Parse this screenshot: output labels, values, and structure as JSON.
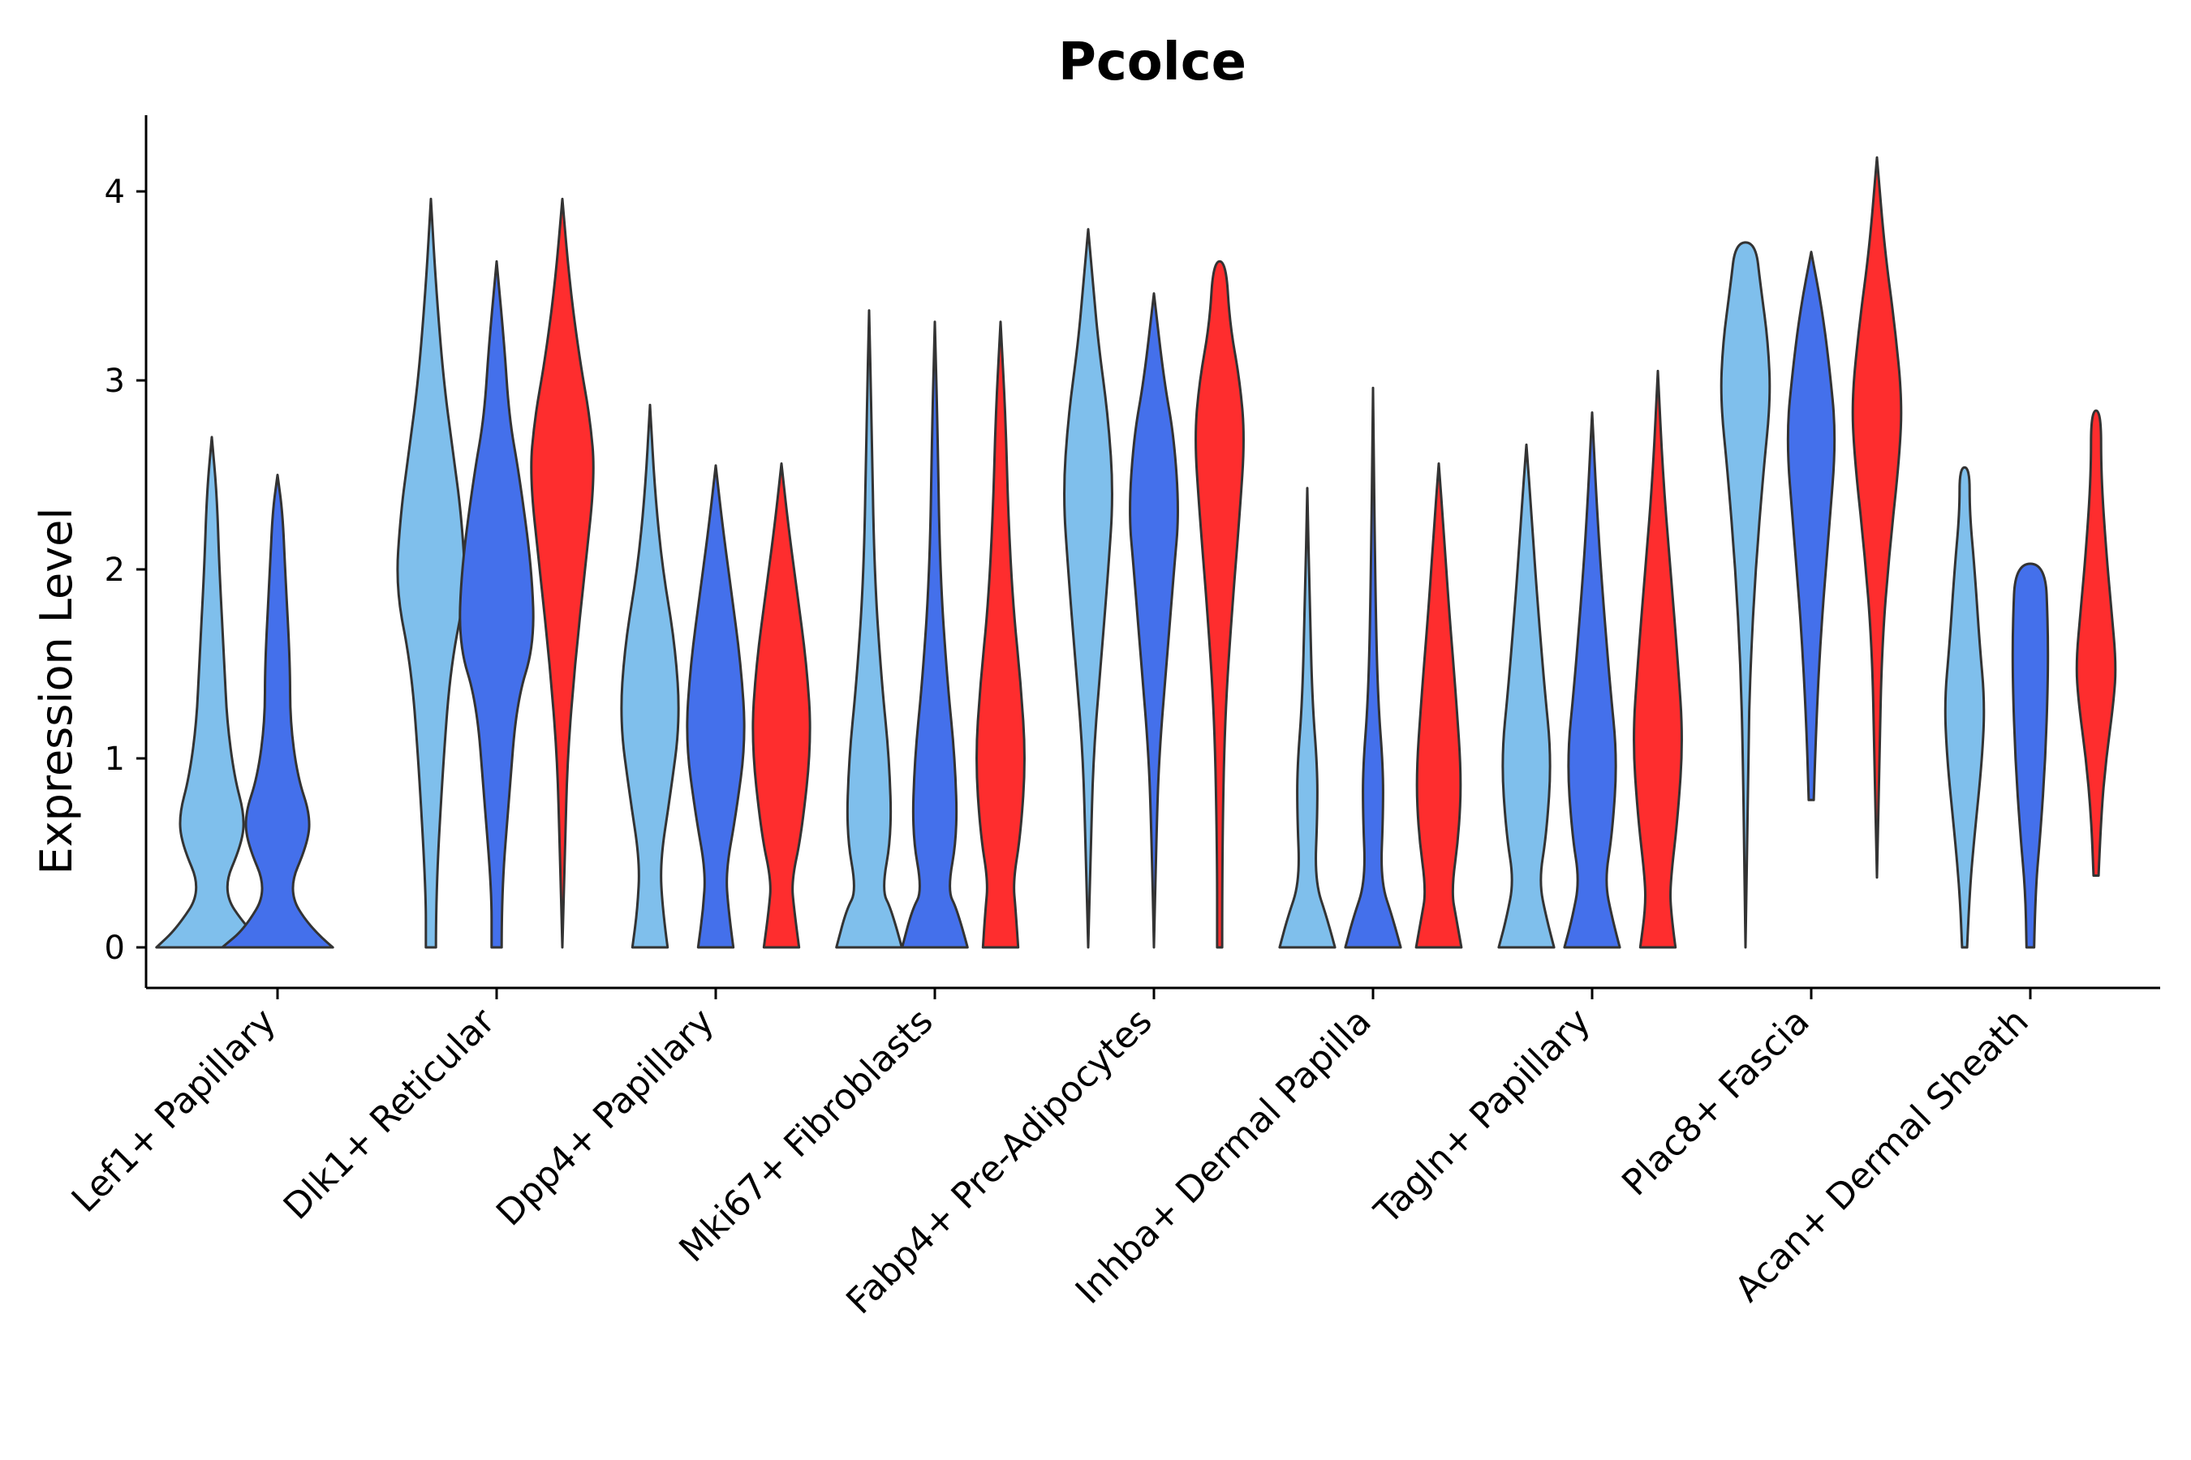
{
  "chart_data": {
    "type": "violin",
    "title": "Pcolce",
    "xlabel": "",
    "ylabel": "Expression Level",
    "ylim": [
      -0.2,
      4.4
    ],
    "yticks": [
      0,
      1,
      2,
      3,
      4
    ],
    "grid": false,
    "legend": "none",
    "series_colors": [
      "#7fbfec",
      "#4470eb",
      "#fe2d2e"
    ],
    "categories": [
      "Lef1+ Papillary",
      "Dlk1+ Reticular",
      "Dpp4+ Papillary",
      "Mki67+ Fibroblasts",
      "Fabp4+ Pre-Adipocytes",
      "Inhba+ Dermal Papilla",
      "Tagln+ Papillary",
      "Plac8+ Fascia",
      "Acan+ Dermal Sheath"
    ],
    "violins": [
      {
        "category": "Lef1+ Papillary",
        "series": 0,
        "min": 0,
        "max": 2.7,
        "profile": [
          [
            0,
            0.22
          ],
          [
            0.1,
            0.14
          ],
          [
            0.3,
            0.04
          ],
          [
            0.55,
            0.12
          ],
          [
            0.7,
            0.13
          ],
          [
            0.9,
            0.09
          ],
          [
            1.2,
            0.06
          ],
          [
            1.5,
            0.05
          ],
          [
            2.0,
            0.03
          ],
          [
            2.4,
            0.02
          ],
          [
            2.7,
            0.0
          ]
        ]
      },
      {
        "category": "Lef1+ Papillary",
        "series": 1,
        "min": 0,
        "max": 2.5,
        "profile": [
          [
            0,
            0.22
          ],
          [
            0.1,
            0.13
          ],
          [
            0.3,
            0.04
          ],
          [
            0.55,
            0.12
          ],
          [
            0.7,
            0.13
          ],
          [
            0.9,
            0.08
          ],
          [
            1.2,
            0.05
          ],
          [
            1.5,
            0.05
          ],
          [
            2.0,
            0.03
          ],
          [
            2.3,
            0.02
          ],
          [
            2.5,
            0.0
          ]
        ]
      },
      {
        "category": "Dlk1+ Reticular",
        "series": 0,
        "min": 0,
        "max": 3.96,
        "profile": [
          [
            0,
            0.02
          ],
          [
            0.3,
            0.02
          ],
          [
            1.0,
            0.05
          ],
          [
            1.5,
            0.08
          ],
          [
            1.9,
            0.14
          ],
          [
            2.3,
            0.12
          ],
          [
            2.6,
            0.09
          ],
          [
            3.0,
            0.05
          ],
          [
            3.5,
            0.02
          ],
          [
            3.96,
            0.0
          ]
        ]
      },
      {
        "category": "Dlk1+ Reticular",
        "series": 1,
        "min": 0,
        "max": 3.63,
        "profile": [
          [
            0,
            0.02
          ],
          [
            0.3,
            0.02
          ],
          [
            0.8,
            0.05
          ],
          [
            1.3,
            0.08
          ],
          [
            1.6,
            0.15
          ],
          [
            2.0,
            0.14
          ],
          [
            2.5,
            0.09
          ],
          [
            2.8,
            0.05
          ],
          [
            3.2,
            0.03
          ],
          [
            3.63,
            0.0
          ]
        ]
      },
      {
        "category": "Dlk1+ Reticular",
        "series": 2,
        "min": 0,
        "max": 3.96,
        "profile": [
          [
            0,
            0.0
          ],
          [
            0.5,
            0.01
          ],
          [
            1.0,
            0.02
          ],
          [
            1.5,
            0.05
          ],
          [
            2.0,
            0.09
          ],
          [
            2.5,
            0.13
          ],
          [
            2.8,
            0.11
          ],
          [
            3.1,
            0.07
          ],
          [
            3.5,
            0.03
          ],
          [
            3.96,
            0.0
          ]
        ]
      },
      {
        "category": "Dpp4+ Papillary",
        "series": 0,
        "min": 0,
        "max": 2.87,
        "profile": [
          [
            0,
            0.07
          ],
          [
            0.2,
            0.05
          ],
          [
            0.45,
            0.04
          ],
          [
            0.8,
            0.08
          ],
          [
            1.2,
            0.12
          ],
          [
            1.6,
            0.1
          ],
          [
            2.0,
            0.05
          ],
          [
            2.4,
            0.02
          ],
          [
            2.87,
            0.0
          ]
        ]
      },
      {
        "category": "Dpp4+ Papillary",
        "series": 1,
        "min": 0,
        "max": 2.55,
        "profile": [
          [
            0,
            0.07
          ],
          [
            0.2,
            0.05
          ],
          [
            0.4,
            0.04
          ],
          [
            0.7,
            0.08
          ],
          [
            1.1,
            0.12
          ],
          [
            1.5,
            0.1
          ],
          [
            1.9,
            0.06
          ],
          [
            2.2,
            0.03
          ],
          [
            2.55,
            0.0
          ]
        ]
      },
      {
        "category": "Dpp4+ Papillary",
        "series": 2,
        "min": 0,
        "max": 2.56,
        "profile": [
          [
            0,
            0.07
          ],
          [
            0.2,
            0.05
          ],
          [
            0.35,
            0.04
          ],
          [
            0.6,
            0.08
          ],
          [
            1.1,
            0.12
          ],
          [
            1.5,
            0.1
          ],
          [
            1.9,
            0.06
          ],
          [
            2.2,
            0.03
          ],
          [
            2.56,
            0.0
          ]
        ]
      },
      {
        "category": "Mki67+ Fibroblasts",
        "series": 0,
        "min": 0,
        "max": 3.37,
        "profile": [
          [
            0,
            0.13
          ],
          [
            0.2,
            0.09
          ],
          [
            0.3,
            0.05
          ],
          [
            0.6,
            0.09
          ],
          [
            1.0,
            0.08
          ],
          [
            1.4,
            0.05
          ],
          [
            2.0,
            0.02
          ],
          [
            2.8,
            0.01
          ],
          [
            3.37,
            0.0
          ]
        ]
      },
      {
        "category": "Mki67+ Fibroblasts",
        "series": 1,
        "min": 0,
        "max": 3.31,
        "profile": [
          [
            0,
            0.13
          ],
          [
            0.2,
            0.09
          ],
          [
            0.3,
            0.05
          ],
          [
            0.6,
            0.09
          ],
          [
            1.0,
            0.08
          ],
          [
            1.4,
            0.05
          ],
          [
            2.0,
            0.02
          ],
          [
            2.8,
            0.01
          ],
          [
            3.31,
            0.0
          ]
        ]
      },
      {
        "category": "Mki67+ Fibroblasts",
        "series": 2,
        "min": 0,
        "max": 3.31,
        "profile": [
          [
            0,
            0.07
          ],
          [
            0.2,
            0.06
          ],
          [
            0.35,
            0.05
          ],
          [
            0.6,
            0.08
          ],
          [
            1.0,
            0.1
          ],
          [
            1.4,
            0.08
          ],
          [
            1.8,
            0.05
          ],
          [
            2.3,
            0.03
          ],
          [
            2.8,
            0.02
          ],
          [
            3.31,
            0.0
          ]
        ]
      },
      {
        "category": "Fabp4+ Pre-Adipocytes",
        "series": 0,
        "min": 0,
        "max": 3.8,
        "profile": [
          [
            0,
            0.0
          ],
          [
            0.5,
            0.01
          ],
          [
            1.0,
            0.02
          ],
          [
            1.5,
            0.05
          ],
          [
            2.0,
            0.08
          ],
          [
            2.4,
            0.1
          ],
          [
            2.8,
            0.08
          ],
          [
            3.2,
            0.04
          ],
          [
            3.5,
            0.02
          ],
          [
            3.8,
            0.0
          ]
        ]
      },
      {
        "category": "Fabp4+ Pre-Adipocytes",
        "series": 1,
        "min": 0,
        "max": 3.46,
        "profile": [
          [
            0,
            0.0
          ],
          [
            0.6,
            0.01
          ],
          [
            1.0,
            0.02
          ],
          [
            1.5,
            0.05
          ],
          [
            2.0,
            0.08
          ],
          [
            2.3,
            0.1
          ],
          [
            2.7,
            0.08
          ],
          [
            3.0,
            0.04
          ],
          [
            3.46,
            0.0
          ]
        ]
      },
      {
        "category": "Fabp4+ Pre-Adipocytes",
        "series": 2,
        "min": 0,
        "max": 3.63,
        "profile": [
          [
            0,
            0.01
          ],
          [
            0.5,
            0.01
          ],
          [
            1.2,
            0.02
          ],
          [
            1.8,
            0.05
          ],
          [
            2.3,
            0.08
          ],
          [
            2.7,
            0.1
          ],
          [
            3.0,
            0.08
          ],
          [
            3.3,
            0.04
          ],
          [
            3.63,
            0.025
          ]
        ]
      },
      {
        "category": "Inhba+ Dermal Papilla",
        "series": 0,
        "min": 0,
        "max": 2.43,
        "profile": [
          [
            0,
            0.11
          ],
          [
            0.15,
            0.08
          ],
          [
            0.35,
            0.03
          ],
          [
            0.7,
            0.04
          ],
          [
            0.95,
            0.04
          ],
          [
            1.3,
            0.02
          ],
          [
            1.8,
            0.01
          ],
          [
            2.43,
            0.0
          ]
        ]
      },
      {
        "category": "Inhba+ Dermal Papilla",
        "series": 1,
        "min": 0,
        "max": 2.96,
        "profile": [
          [
            0,
            0.11
          ],
          [
            0.15,
            0.08
          ],
          [
            0.35,
            0.03
          ],
          [
            0.7,
            0.04
          ],
          [
            0.95,
            0.04
          ],
          [
            1.3,
            0.02
          ],
          [
            1.8,
            0.01
          ],
          [
            2.96,
            0.0
          ]
        ]
      },
      {
        "category": "Inhba+ Dermal Papilla",
        "series": 2,
        "min": 0,
        "max": 2.56,
        "profile": [
          [
            0,
            0.09
          ],
          [
            0.15,
            0.07
          ],
          [
            0.3,
            0.05
          ],
          [
            0.6,
            0.08
          ],
          [
            0.9,
            0.09
          ],
          [
            1.3,
            0.07
          ],
          [
            1.8,
            0.04
          ],
          [
            2.2,
            0.02
          ],
          [
            2.56,
            0.0
          ]
        ]
      },
      {
        "category": "Tagln+ Papillary",
        "series": 0,
        "min": 0,
        "max": 2.66,
        "profile": [
          [
            0,
            0.11
          ],
          [
            0.15,
            0.08
          ],
          [
            0.35,
            0.05
          ],
          [
            0.6,
            0.08
          ],
          [
            1.0,
            0.1
          ],
          [
            1.4,
            0.07
          ],
          [
            1.9,
            0.04
          ],
          [
            2.3,
            0.02
          ],
          [
            2.66,
            0.0
          ]
        ]
      },
      {
        "category": "Tagln+ Papillary",
        "series": 1,
        "min": 0,
        "max": 2.83,
        "profile": [
          [
            0,
            0.11
          ],
          [
            0.15,
            0.08
          ],
          [
            0.35,
            0.05
          ],
          [
            0.6,
            0.08
          ],
          [
            1.0,
            0.1
          ],
          [
            1.4,
            0.07
          ],
          [
            1.9,
            0.04
          ],
          [
            2.3,
            0.02
          ],
          [
            2.83,
            0.0
          ]
        ]
      },
      {
        "category": "Tagln+ Papillary",
        "series": 2,
        "min": 0,
        "max": 3.05,
        "profile": [
          [
            0,
            0.07
          ],
          [
            0.2,
            0.05
          ],
          [
            0.35,
            0.05
          ],
          [
            0.7,
            0.08
          ],
          [
            1.1,
            0.1
          ],
          [
            1.5,
            0.08
          ],
          [
            2.0,
            0.05
          ],
          [
            2.5,
            0.02
          ],
          [
            3.05,
            0.0
          ]
        ]
      },
      {
        "category": "Plac8+ Fascia",
        "series": 0,
        "min": 0,
        "max": 3.73,
        "profile": [
          [
            0,
            0.0
          ],
          [
            1.0,
            0.01
          ],
          [
            1.5,
            0.02
          ],
          [
            2.0,
            0.04
          ],
          [
            2.5,
            0.07
          ],
          [
            2.9,
            0.1
          ],
          [
            3.2,
            0.09
          ],
          [
            3.5,
            0.06
          ],
          [
            3.73,
            0.04
          ]
        ]
      },
      {
        "category": "Plac8+ Fascia",
        "series": 1,
        "min": 0.78,
        "max": 3.68,
        "profile": [
          [
            0.78,
            0.01
          ],
          [
            1.2,
            0.02
          ],
          [
            1.7,
            0.04
          ],
          [
            2.2,
            0.07
          ],
          [
            2.7,
            0.1
          ],
          [
            3.1,
            0.07
          ],
          [
            3.4,
            0.04
          ],
          [
            3.68,
            0.0
          ]
        ]
      },
      {
        "category": "Plac8+ Fascia",
        "series": 2,
        "min": 0.37,
        "max": 4.18,
        "profile": [
          [
            0.37,
            0.0
          ],
          [
            1.0,
            0.01
          ],
          [
            1.6,
            0.02
          ],
          [
            2.1,
            0.05
          ],
          [
            2.6,
            0.09
          ],
          [
            2.9,
            0.1
          ],
          [
            3.3,
            0.07
          ],
          [
            3.7,
            0.03
          ],
          [
            4.18,
            0.0
          ]
        ]
      },
      {
        "category": "Acan+ Dermal Sheath",
        "series": 0,
        "min": 0,
        "max": 2.54,
        "profile": [
          [
            0,
            0.01
          ],
          [
            0.3,
            0.02
          ],
          [
            0.6,
            0.04
          ],
          [
            1.0,
            0.07
          ],
          [
            1.3,
            0.08
          ],
          [
            1.6,
            0.06
          ],
          [
            2.0,
            0.04
          ],
          [
            2.3,
            0.02
          ],
          [
            2.54,
            0.02
          ]
        ]
      },
      {
        "category": "Acan+ Dermal Sheath",
        "series": 1,
        "min": 0,
        "max": 2.03,
        "profile": [
          [
            0,
            0.015
          ],
          [
            0.3,
            0.02
          ],
          [
            0.6,
            0.04
          ],
          [
            1.0,
            0.06
          ],
          [
            1.4,
            0.07
          ],
          [
            1.7,
            0.07
          ],
          [
            2.03,
            0.06
          ]
        ]
      },
      {
        "category": "Acan+ Dermal Sheath",
        "series": 2,
        "min": 0.38,
        "max": 2.84,
        "profile": [
          [
            0.38,
            0.01
          ],
          [
            0.7,
            0.02
          ],
          [
            1.0,
            0.04
          ],
          [
            1.3,
            0.07
          ],
          [
            1.5,
            0.08
          ],
          [
            1.8,
            0.06
          ],
          [
            2.1,
            0.04
          ],
          [
            2.5,
            0.02
          ],
          [
            2.84,
            0.02
          ]
        ]
      }
    ]
  }
}
